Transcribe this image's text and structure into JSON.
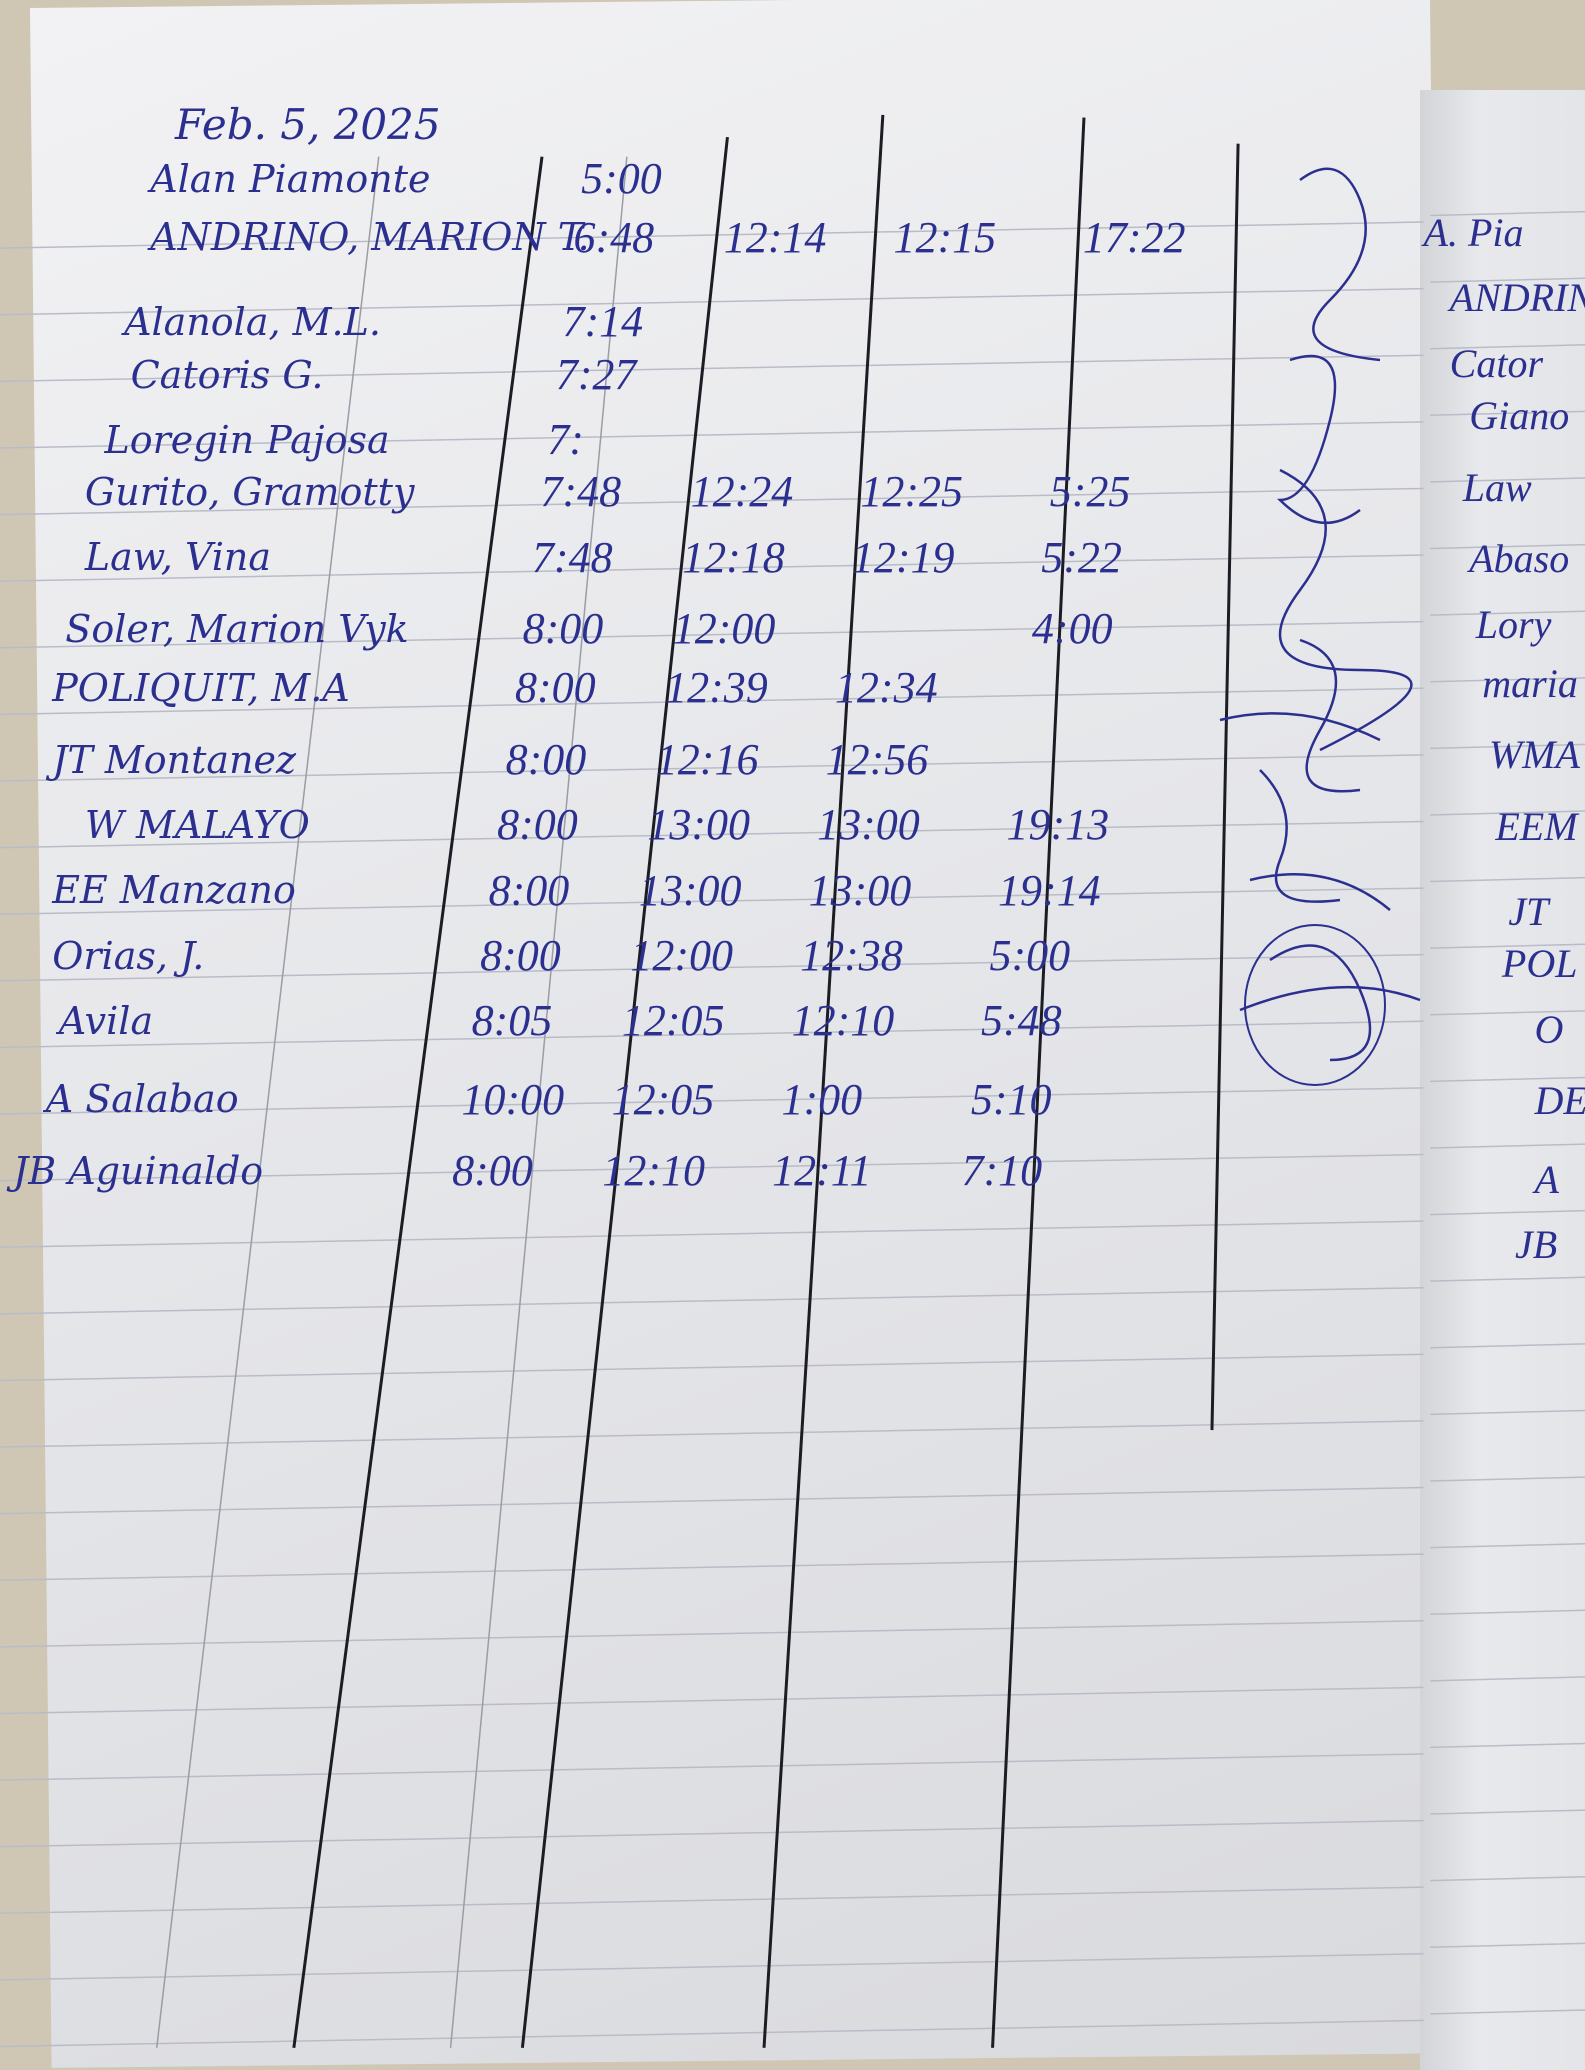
{
  "log": {
    "date": "Feb. 5, 2025",
    "rows": [
      {
        "name": "Alan Piamonte",
        "am_in": "5:00",
        "am_out": "",
        "pm_in": "",
        "pm_out": ""
      },
      {
        "name": "ANDRINO, MARION T.",
        "am_in": "6:48",
        "am_out": "12:14",
        "pm_in": "12:15",
        "pm_out": "17:22"
      },
      {
        "name": "Alanola, M.L.",
        "am_in": "7:14",
        "am_out": "",
        "pm_in": "",
        "pm_out": ""
      },
      {
        "name": "Catoris G.",
        "am_in": "7:27",
        "am_out": "",
        "pm_in": "",
        "pm_out": ""
      },
      {
        "name": "Loregin Pajosa",
        "am_in": "7:",
        "am_out": "",
        "pm_in": "",
        "pm_out": ""
      },
      {
        "name": "Gurito, Gramotty",
        "am_in": "7:48",
        "am_out": "12:24",
        "pm_in": "12:25",
        "pm_out": "5:25"
      },
      {
        "name": "Law, Vina",
        "am_in": "7:48",
        "am_out": "12:18",
        "pm_in": "12:19",
        "pm_out": "5:22"
      },
      {
        "name": "Soler, Marion Vyk",
        "am_in": "8:00",
        "am_out": "12:00",
        "pm_in": "",
        "pm_out": "4:00"
      },
      {
        "name": "POLIQUIT, M.A",
        "am_in": "8:00",
        "am_out": "12:39",
        "pm_in": "12:34",
        "pm_out": ""
      },
      {
        "name": "JT Montanez",
        "am_in": "8:00",
        "am_out": "12:16",
        "pm_in": "12:56",
        "pm_out": ""
      },
      {
        "name": "W MALAYO",
        "am_in": "8:00",
        "am_out": "13:00",
        "pm_in": "13:00",
        "pm_out": "19:13"
      },
      {
        "name": "EE Manzano",
        "am_in": "8:00",
        "am_out": "13:00",
        "pm_in": "13:00",
        "pm_out": "19:14"
      },
      {
        "name": "Orias, J.",
        "am_in": "8:00",
        "am_out": "12:00",
        "pm_in": "12:38",
        "pm_out": "5:00"
      },
      {
        "name": "Avila",
        "am_in": "8:05",
        "am_out": "12:05",
        "pm_in": "12:10",
        "pm_out": "5:48"
      },
      {
        "name": "A Salabao",
        "am_in": "10:00",
        "am_out": "12:05",
        "pm_in": "1:00",
        "pm_out": "5:10"
      },
      {
        "name": "JB Aguinaldo",
        "am_in": "8:00",
        "am_out": "12:10",
        "pm_in": "12:11",
        "pm_out": "7:10"
      }
    ]
  },
  "right_page": {
    "names": [
      "A. Pia",
      "ANDRIN",
      "Cator",
      "Giano",
      "Law",
      "Abaso",
      "Lory",
      "maria",
      "WMA",
      "EEM",
      "JT",
      "POL",
      "O",
      "DE",
      "A",
      "JB"
    ]
  },
  "colors": {
    "ink": "#2b2f8f",
    "rule": "#1c1d24",
    "paper": "#e6e7ea"
  }
}
